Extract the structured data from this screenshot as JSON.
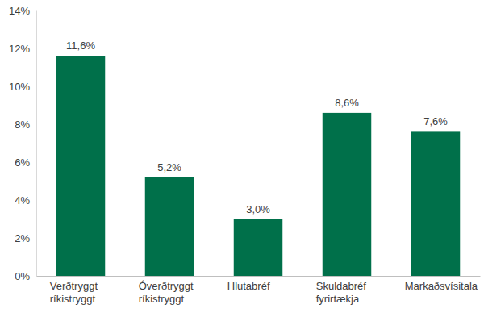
{
  "chart_data": {
    "type": "bar",
    "categories": [
      "Verðtryggt ríkistryggt",
      "Óverðtryggt ríkistryggt",
      "Hlutabréf",
      "Skuldabréf fyrirtækja",
      "Markaðsvísitala"
    ],
    "values": [
      11.6,
      5.2,
      3.0,
      8.6,
      7.6
    ],
    "value_labels": [
      "11,6%",
      "5,2%",
      "3,0%",
      "8,6%",
      "7,6%"
    ],
    "data_labels": true,
    "color": "#00704a",
    "ylim": [
      0,
      14
    ],
    "yticks": [
      {
        "value": 0,
        "label": "0%"
      },
      {
        "value": 2,
        "label": "2%"
      },
      {
        "value": 4,
        "label": "4%"
      },
      {
        "value": 6,
        "label": "6%"
      },
      {
        "value": 8,
        "label": "8%"
      },
      {
        "value": 10,
        "label": "10%"
      },
      {
        "value": 12,
        "label": "12%"
      },
      {
        "value": 14,
        "label": "14%"
      }
    ],
    "grid": false
  }
}
